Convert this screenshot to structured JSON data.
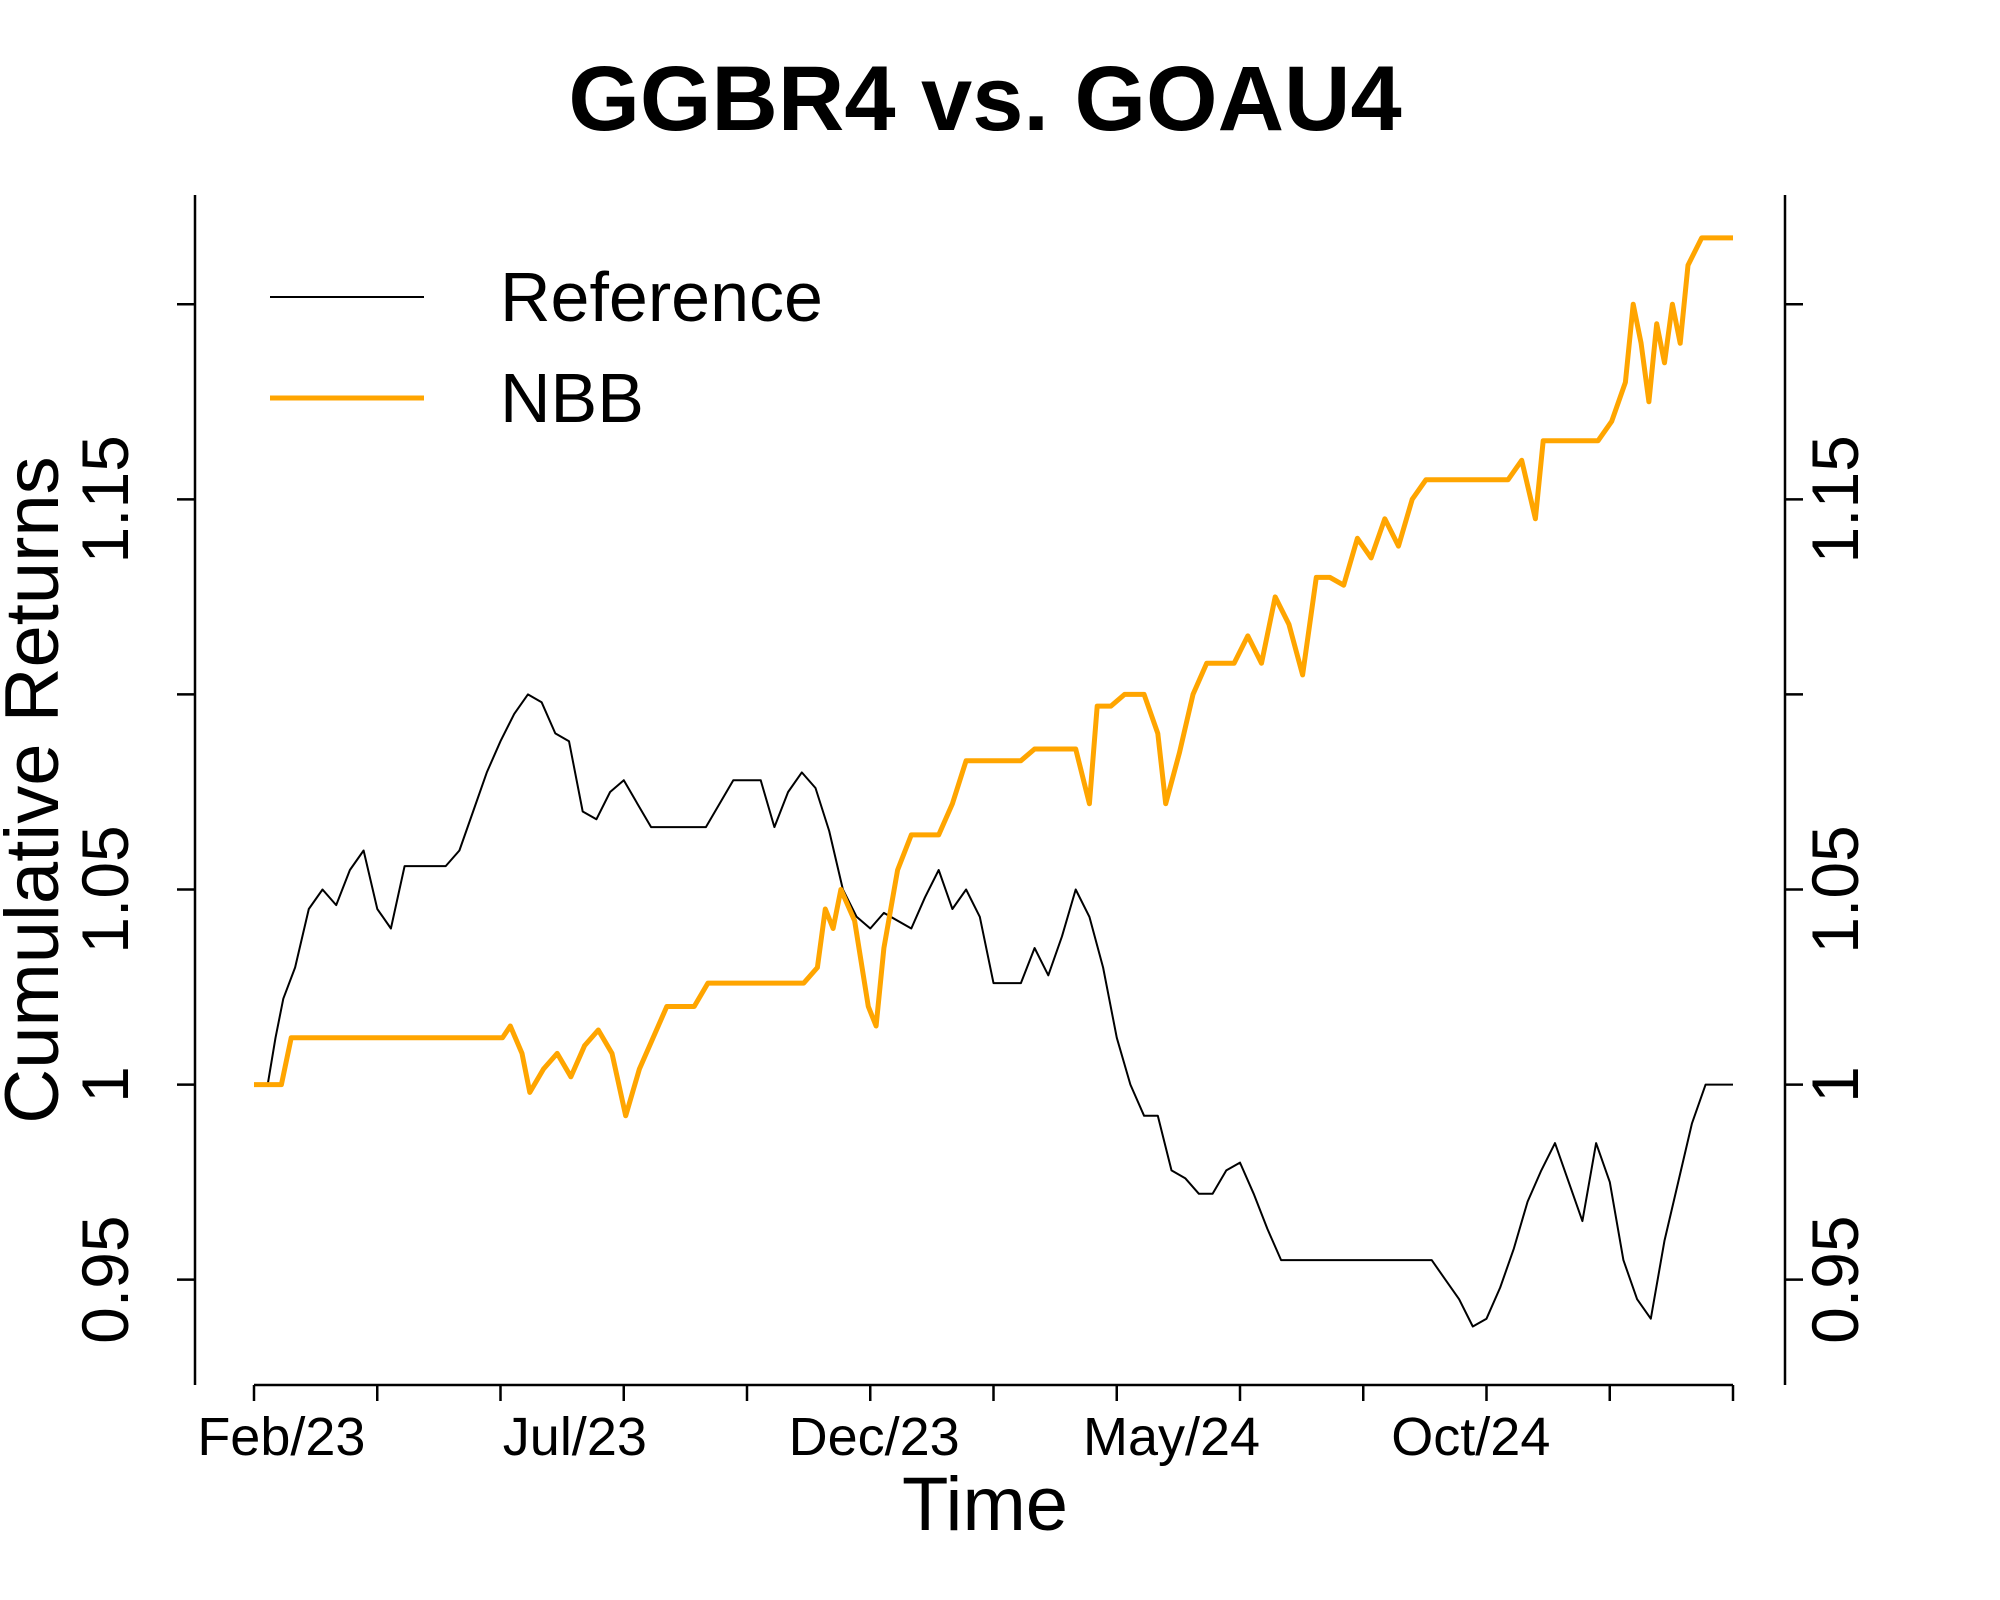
{
  "chart_data": {
    "type": "line",
    "title": "GGBR4 vs. GOAU4",
    "xlabel": "Time",
    "ylabel": "Cumulative Returns",
    "x_tick_labels": [
      "Feb/23",
      "Jul/23",
      "Dec/23",
      "May/24",
      "Oct/24"
    ],
    "y_tick_labels": [
      "0.95",
      "1",
      "1.05",
      "1.15"
    ],
    "ylim": [
      0.923,
      1.228
    ],
    "grid": false,
    "legend_position": "top-left",
    "series": [
      {
        "name": "Reference",
        "color": "#000000",
        "points": [
          [
            "2023-02-01",
            1.0
          ],
          [
            "2023-02-08",
            1.0
          ],
          [
            "2023-02-12",
            1.012
          ],
          [
            "2023-02-16",
            1.022
          ],
          [
            "2023-02-22",
            1.03
          ],
          [
            "2023-03-01",
            1.045
          ],
          [
            "2023-03-08",
            1.05
          ],
          [
            "2023-03-15",
            1.046
          ],
          [
            "2023-03-22",
            1.055
          ],
          [
            "2023-03-29",
            1.06
          ],
          [
            "2023-04-05",
            1.045
          ],
          [
            "2023-04-12",
            1.04
          ],
          [
            "2023-04-19",
            1.056
          ],
          [
            "2023-05-01",
            1.056
          ],
          [
            "2023-05-10",
            1.056
          ],
          [
            "2023-05-17",
            1.06
          ],
          [
            "2023-05-24",
            1.07
          ],
          [
            "2023-05-31",
            1.08
          ],
          [
            "2023-06-07",
            1.088
          ],
          [
            "2023-06-14",
            1.095
          ],
          [
            "2023-06-21",
            1.1
          ],
          [
            "2023-06-28",
            1.098
          ],
          [
            "2023-07-05",
            1.09
          ],
          [
            "2023-07-12",
            1.088
          ],
          [
            "2023-07-19",
            1.07
          ],
          [
            "2023-07-26",
            1.068
          ],
          [
            "2023-08-02",
            1.075
          ],
          [
            "2023-08-09",
            1.078
          ],
          [
            "2023-08-16",
            1.072
          ],
          [
            "2023-08-23",
            1.066
          ],
          [
            "2023-09-06",
            1.066
          ],
          [
            "2023-09-20",
            1.066
          ],
          [
            "2023-10-04",
            1.078
          ],
          [
            "2023-10-18",
            1.078
          ],
          [
            "2023-10-25",
            1.066
          ],
          [
            "2023-11-01",
            1.075
          ],
          [
            "2023-11-08",
            1.08
          ],
          [
            "2023-11-15",
            1.076
          ],
          [
            "2023-11-22",
            1.065
          ],
          [
            "2023-11-29",
            1.05
          ],
          [
            "2023-12-06",
            1.043
          ],
          [
            "2023-12-13",
            1.04
          ],
          [
            "2023-12-20",
            1.044
          ],
          [
            "2024-01-03",
            1.04
          ],
          [
            "2024-01-10",
            1.048
          ],
          [
            "2024-01-17",
            1.055
          ],
          [
            "2024-01-24",
            1.045
          ],
          [
            "2024-01-31",
            1.05
          ],
          [
            "2024-02-07",
            1.043
          ],
          [
            "2024-02-14",
            1.026
          ],
          [
            "2024-02-28",
            1.026
          ],
          [
            "2024-03-06",
            1.035
          ],
          [
            "2024-03-13",
            1.028
          ],
          [
            "2024-03-20",
            1.038
          ],
          [
            "2024-03-27",
            1.05
          ],
          [
            "2024-04-03",
            1.043
          ],
          [
            "2024-04-10",
            1.03
          ],
          [
            "2024-04-17",
            1.012
          ],
          [
            "2024-04-24",
            1.0
          ],
          [
            "2024-05-01",
            0.992
          ],
          [
            "2024-05-08",
            0.992
          ],
          [
            "2024-05-15",
            0.978
          ],
          [
            "2024-05-22",
            0.976
          ],
          [
            "2024-05-29",
            0.972
          ],
          [
            "2024-06-05",
            0.972
          ],
          [
            "2024-06-12",
            0.978
          ],
          [
            "2024-06-19",
            0.98
          ],
          [
            "2024-06-26",
            0.972
          ],
          [
            "2024-07-03",
            0.963
          ],
          [
            "2024-07-10",
            0.955
          ],
          [
            "2024-07-24",
            0.955
          ],
          [
            "2024-08-07",
            0.955
          ],
          [
            "2024-08-21",
            0.955
          ],
          [
            "2024-09-04",
            0.955
          ],
          [
            "2024-09-18",
            0.955
          ],
          [
            "2024-09-25",
            0.955
          ],
          [
            "2024-10-02",
            0.95
          ],
          [
            "2024-10-09",
            0.945
          ],
          [
            "2024-10-16",
            0.938
          ],
          [
            "2024-10-23",
            0.94
          ],
          [
            "2024-10-30",
            0.948
          ],
          [
            "2024-11-06",
            0.958
          ],
          [
            "2024-11-13",
            0.97
          ],
          [
            "2024-11-20",
            0.978
          ],
          [
            "2024-11-27",
            0.985
          ],
          [
            "2024-12-04",
            0.975
          ],
          [
            "2024-12-11",
            0.965
          ],
          [
            "2024-12-18",
            0.985
          ],
          [
            "2024-12-25",
            0.975
          ],
          [
            "2025-01-01",
            0.955
          ],
          [
            "2025-01-08",
            0.945
          ],
          [
            "2025-01-15",
            0.94
          ],
          [
            "2025-01-22",
            0.96
          ],
          [
            "2025-01-29",
            0.975
          ],
          [
            "2025-02-05",
            0.99
          ],
          [
            "2025-02-12",
            1.0
          ],
          [
            "2025-02-26",
            1.0
          ]
        ]
      },
      {
        "name": "NBB",
        "color": "#FFA500",
        "points": [
          [
            "2023-02-01",
            1.0
          ],
          [
            "2023-02-08",
            1.0
          ],
          [
            "2023-02-15",
            1.0
          ],
          [
            "2023-02-20",
            1.012
          ],
          [
            "2023-03-01",
            1.012
          ],
          [
            "2023-03-15",
            1.012
          ],
          [
            "2023-04-01",
            1.012
          ],
          [
            "2023-05-01",
            1.012
          ],
          [
            "2023-06-01",
            1.012
          ],
          [
            "2023-06-08",
            1.012
          ],
          [
            "2023-06-12",
            1.015
          ],
          [
            "2023-06-18",
            1.008
          ],
          [
            "2023-06-22",
            0.998
          ],
          [
            "2023-06-29",
            1.004
          ],
          [
            "2023-07-06",
            1.008
          ],
          [
            "2023-07-13",
            1.002
          ],
          [
            "2023-07-20",
            1.01
          ],
          [
            "2023-07-27",
            1.014
          ],
          [
            "2023-08-03",
            1.008
          ],
          [
            "2023-08-10",
            0.992
          ],
          [
            "2023-08-17",
            1.004
          ],
          [
            "2023-08-24",
            1.012
          ],
          [
            "2023-08-31",
            1.02
          ],
          [
            "2023-09-14",
            1.02
          ],
          [
            "2023-09-21",
            1.026
          ],
          [
            "2023-10-05",
            1.026
          ],
          [
            "2023-10-19",
            1.026
          ],
          [
            "2023-11-02",
            1.026
          ],
          [
            "2023-11-09",
            1.026
          ],
          [
            "2023-11-16",
            1.03
          ],
          [
            "2023-11-20",
            1.045
          ],
          [
            "2023-11-24",
            1.04
          ],
          [
            "2023-11-28",
            1.05
          ],
          [
            "2023-12-05",
            1.042
          ],
          [
            "2023-12-12",
            1.02
          ],
          [
            "2023-12-16",
            1.015
          ],
          [
            "2023-12-20",
            1.035
          ],
          [
            "2023-12-27",
            1.055
          ],
          [
            "2024-01-03",
            1.064
          ],
          [
            "2024-01-17",
            1.064
          ],
          [
            "2024-01-24",
            1.072
          ],
          [
            "2024-01-31",
            1.083
          ],
          [
            "2024-02-14",
            1.083
          ],
          [
            "2024-02-28",
            1.083
          ],
          [
            "2024-03-06",
            1.086
          ],
          [
            "2024-03-27",
            1.086
          ],
          [
            "2024-04-03",
            1.072
          ],
          [
            "2024-04-07",
            1.097
          ],
          [
            "2024-04-14",
            1.097
          ],
          [
            "2024-04-21",
            1.1
          ],
          [
            "2024-05-01",
            1.1
          ],
          [
            "2024-05-08",
            1.09
          ],
          [
            "2024-05-12",
            1.072
          ],
          [
            "2024-05-19",
            1.085
          ],
          [
            "2024-05-26",
            1.1
          ],
          [
            "2024-06-02",
            1.108
          ],
          [
            "2024-06-16",
            1.108
          ],
          [
            "2024-06-23",
            1.115
          ],
          [
            "2024-06-30",
            1.108
          ],
          [
            "2024-07-07",
            1.125
          ],
          [
            "2024-07-14",
            1.118
          ],
          [
            "2024-07-21",
            1.105
          ],
          [
            "2024-07-28",
            1.13
          ],
          [
            "2024-08-04",
            1.13
          ],
          [
            "2024-08-11",
            1.128
          ],
          [
            "2024-08-18",
            1.14
          ],
          [
            "2024-08-25",
            1.135
          ],
          [
            "2024-09-01",
            1.145
          ],
          [
            "2024-09-08",
            1.138
          ],
          [
            "2024-09-15",
            1.15
          ],
          [
            "2024-09-22",
            1.155
          ],
          [
            "2024-10-06",
            1.155
          ],
          [
            "2024-10-20",
            1.155
          ],
          [
            "2024-11-03",
            1.155
          ],
          [
            "2024-11-10",
            1.16
          ],
          [
            "2024-11-17",
            1.145
          ],
          [
            "2024-11-21",
            1.165
          ],
          [
            "2024-12-05",
            1.165
          ],
          [
            "2024-12-19",
            1.165
          ],
          [
            "2024-12-26",
            1.17
          ],
          [
            "2025-01-02",
            1.18
          ],
          [
            "2025-01-06",
            1.2
          ],
          [
            "2025-01-10",
            1.19
          ],
          [
            "2025-01-14",
            1.175
          ],
          [
            "2025-01-18",
            1.195
          ],
          [
            "2025-01-22",
            1.185
          ],
          [
            "2025-01-26",
            1.2
          ],
          [
            "2025-01-30",
            1.19
          ],
          [
            "2025-02-03",
            1.21
          ],
          [
            "2025-02-10",
            1.217
          ],
          [
            "2025-02-26",
            1.217
          ]
        ]
      }
    ]
  }
}
